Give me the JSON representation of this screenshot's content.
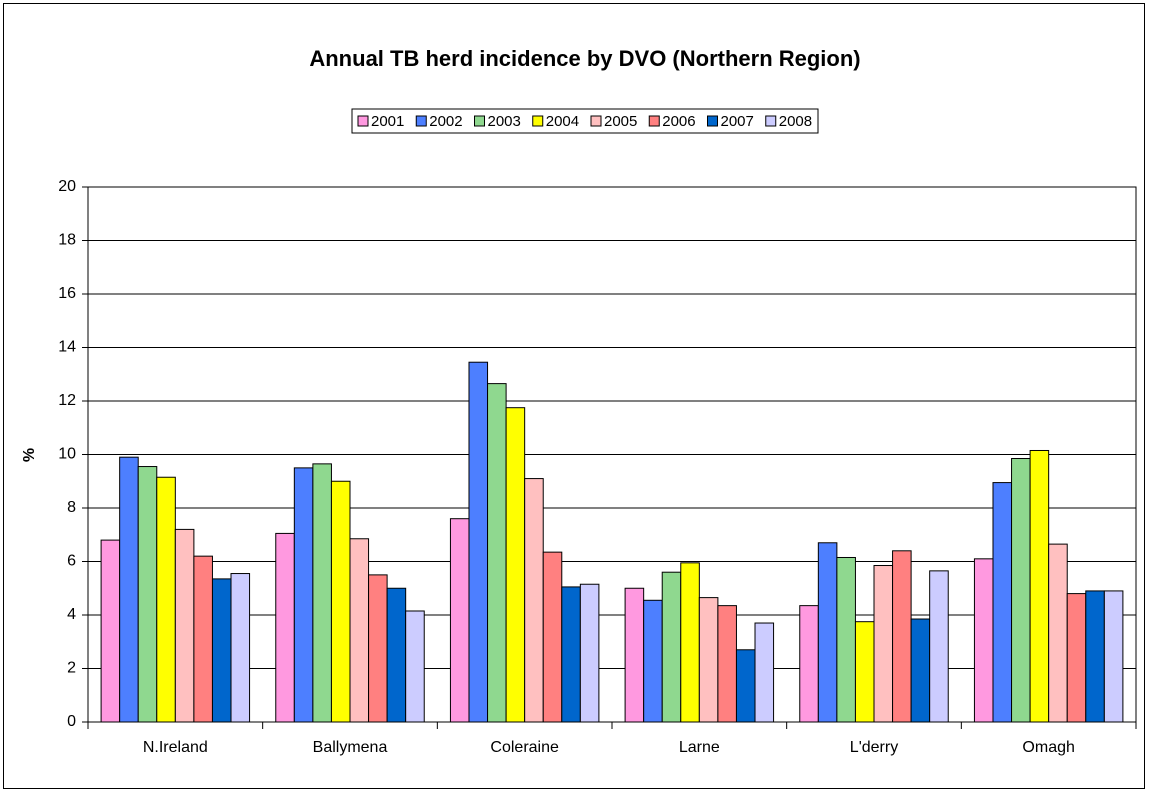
{
  "chart_data": {
    "type": "bar",
    "title": "Annual TB herd incidence by DVO (Northern Region)",
    "y_label": "%",
    "categories": [
      "N.Ireland",
      "Ballymena",
      "Coleraine",
      "Larne",
      "L'derry",
      "Omagh"
    ],
    "series": [
      {
        "name": "2001",
        "color": "#ff99e0",
        "values": [
          6.8,
          7.05,
          7.6,
          5.0,
          4.35,
          6.1
        ]
      },
      {
        "name": "2002",
        "color": "#4d7fff",
        "values": [
          9.9,
          9.5,
          13.45,
          4.55,
          6.7,
          8.95
        ]
      },
      {
        "name": "2003",
        "color": "#8fd88f",
        "values": [
          9.55,
          9.65,
          12.65,
          5.6,
          6.15,
          9.85
        ]
      },
      {
        "name": "2004",
        "color": "#ffff00",
        "values": [
          9.15,
          9.0,
          11.75,
          5.95,
          3.75,
          10.15
        ]
      },
      {
        "name": "2005",
        "color": "#ffc0c0",
        "values": [
          7.2,
          6.85,
          9.1,
          4.65,
          5.85,
          6.65
        ]
      },
      {
        "name": "2006",
        "color": "#ff8080",
        "values": [
          6.2,
          5.5,
          6.35,
          4.35,
          6.4,
          4.8
        ]
      },
      {
        "name": "2007",
        "color": "#0066cc",
        "values": [
          5.35,
          5.0,
          5.05,
          2.7,
          3.85,
          4.9
        ]
      },
      {
        "name": "2008",
        "color": "#ccccff",
        "values": [
          5.55,
          4.15,
          5.15,
          3.7,
          5.65,
          4.9
        ]
      }
    ],
    "ylim": [
      0,
      20
    ],
    "yticks": [
      0,
      2,
      4,
      6,
      8,
      10,
      12,
      14,
      16,
      18,
      20
    ],
    "grid": true
  }
}
